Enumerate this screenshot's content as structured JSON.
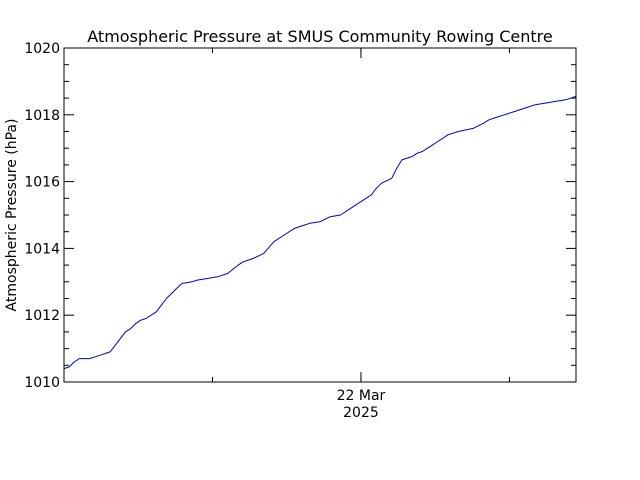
{
  "chart_data": {
    "type": "line",
    "title": "Atmospheric Pressure at SMUS Community Rowing Centre",
    "ylabel": "Atmospheric Pressure (hPa)",
    "xlabel": "",
    "ylim": [
      1010,
      1020
    ],
    "yticks": [
      1010,
      1012,
      1014,
      1016,
      1018,
      1020
    ],
    "ytick_labels": [
      "1010",
      "1012",
      "1014",
      "1016",
      "1018",
      "1020"
    ],
    "y_minor_step": 0.5,
    "xlim": [
      0,
      1
    ],
    "xticks": [
      {
        "x": 0.58,
        "label_line1": "22 Mar",
        "label_line2": "2025"
      }
    ],
    "x_minor_ticks": [
      0.0,
      0.29,
      0.58,
      0.87
    ],
    "line_color": "#0000c8",
    "grid": false,
    "series": [
      {
        "name": "pressure",
        "x": [
          0.0,
          0.01,
          0.02,
          0.03,
          0.05,
          0.07,
          0.09,
          0.1,
          0.11,
          0.12,
          0.13,
          0.14,
          0.15,
          0.16,
          0.18,
          0.19,
          0.2,
          0.22,
          0.23,
          0.25,
          0.26,
          0.28,
          0.3,
          0.32,
          0.34,
          0.35,
          0.36,
          0.37,
          0.39,
          0.41,
          0.43,
          0.45,
          0.47,
          0.48,
          0.5,
          0.52,
          0.54,
          0.56,
          0.58,
          0.59,
          0.6,
          0.61,
          0.62,
          0.64,
          0.65,
          0.66,
          0.68,
          0.69,
          0.7,
          0.71,
          0.72,
          0.73,
          0.75,
          0.77,
          0.8,
          0.82,
          0.83,
          0.84,
          0.86,
          0.88,
          0.9,
          0.92,
          0.94,
          0.96,
          0.98,
          1.0
        ],
        "values": [
          1010.4,
          1010.45,
          1010.6,
          1010.7,
          1010.7,
          1010.8,
          1010.9,
          1011.1,
          1011.3,
          1011.5,
          1011.6,
          1011.75,
          1011.85,
          1011.9,
          1012.1,
          1012.3,
          1012.5,
          1012.8,
          1012.95,
          1013.0,
          1013.05,
          1013.1,
          1013.15,
          1013.25,
          1013.5,
          1013.6,
          1013.65,
          1013.7,
          1013.85,
          1014.2,
          1014.4,
          1014.6,
          1014.7,
          1014.75,
          1014.8,
          1014.95,
          1015.0,
          1015.2,
          1015.4,
          1015.5,
          1015.6,
          1015.8,
          1015.95,
          1016.1,
          1016.4,
          1016.65,
          1016.75,
          1016.85,
          1016.9,
          1017.0,
          1017.1,
          1017.2,
          1017.4,
          1017.5,
          1017.6,
          1017.75,
          1017.85,
          1017.9,
          1018.0,
          1018.1,
          1018.2,
          1018.3,
          1018.35,
          1018.4,
          1018.45,
          1018.55
        ]
      }
    ]
  }
}
